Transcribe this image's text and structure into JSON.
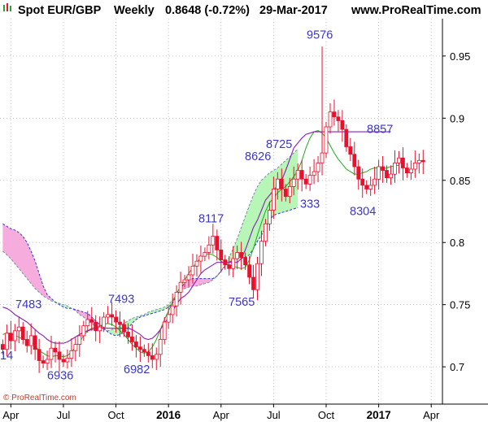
{
  "header": {
    "instrument": "Spot EUR/GBP",
    "timeframe": "Weekly",
    "quote": "0.8648 (-0.72%)",
    "date": "29-Mar-2017",
    "site": "www.ProRealTime.com"
  },
  "watermark": "© ProRealTime.com",
  "colors": {
    "up": "#ffffff",
    "down": "#e8112d",
    "wick": "#e8112d",
    "tenkan": "#1faa1f",
    "kijun": "#8a1eb8",
    "cloud_bull": "#b3f5b3",
    "cloud_bear": "#f7a8dc",
    "span_a": "#7a8aa6",
    "span_b": "#3434d0",
    "annotation": "#3b36c8",
    "grid": "#c8c8c8"
  },
  "chart_data": {
    "type": "candlestick",
    "title": "Spot EUR/GBP Weekly",
    "y_axis": {
      "min": 0.67,
      "max": 0.98,
      "ticks": [
        0.7,
        0.75,
        0.8,
        0.85,
        0.9,
        0.95
      ],
      "position": "right"
    },
    "x_axis": {
      "labels": [
        {
          "label": "Apr",
          "week": 2
        },
        {
          "label": "Jul",
          "week": 15
        },
        {
          "label": "Oct",
          "week": 28
        },
        {
          "label": "2016",
          "week": 41,
          "bold": true
        },
        {
          "label": "Apr",
          "week": 54
        },
        {
          "label": "Jul",
          "week": 67
        },
        {
          "label": "Oct",
          "week": 80
        },
        {
          "label": "2017",
          "week": 93,
          "bold": true
        },
        {
          "label": "Apr",
          "week": 106
        }
      ],
      "weeks_total": 111
    },
    "closes": [
      0.714,
      0.727,
      0.721,
      0.729,
      0.732,
      0.722,
      0.717,
      0.725,
      0.714,
      0.705,
      0.703,
      0.706,
      0.715,
      0.712,
      0.706,
      0.704,
      0.707,
      0.713,
      0.718,
      0.725,
      0.733,
      0.738,
      0.736,
      0.729,
      0.732,
      0.74,
      0.742,
      0.74,
      0.736,
      0.734,
      0.728,
      0.724,
      0.72,
      0.716,
      0.714,
      0.712,
      0.709,
      0.706,
      0.71,
      0.722,
      0.736,
      0.742,
      0.749,
      0.76,
      0.768,
      0.77,
      0.774,
      0.781,
      0.785,
      0.789,
      0.792,
      0.798,
      0.805,
      0.794,
      0.786,
      0.782,
      0.779,
      0.787,
      0.792,
      0.788,
      0.782,
      0.772,
      0.762,
      0.783,
      0.801,
      0.815,
      0.826,
      0.843,
      0.851,
      0.843,
      0.837,
      0.845,
      0.851,
      0.858,
      0.851,
      0.847,
      0.854,
      0.857,
      0.864,
      0.872,
      0.893,
      0.905,
      0.901,
      0.898,
      0.891,
      0.877,
      0.871,
      0.861,
      0.851,
      0.846,
      0.843,
      0.846,
      0.851,
      0.861,
      0.858,
      0.852,
      0.855,
      0.864,
      0.868,
      0.86,
      0.856,
      0.859,
      0.864,
      0.866,
      0.865
    ],
    "tenkan_sen": [
      0.726,
      0.727,
      0.727,
      0.725,
      0.724,
      0.722,
      0.722,
      0.721,
      0.717,
      0.713,
      0.711,
      0.709,
      0.708,
      0.709,
      0.709,
      0.708,
      0.709,
      0.712,
      0.716,
      0.72,
      0.725,
      0.729,
      0.731,
      0.732,
      0.733,
      0.734,
      0.735,
      0.734,
      0.732,
      0.729,
      0.726,
      0.722,
      0.718,
      0.715,
      0.712,
      0.711,
      0.712,
      0.716,
      0.722,
      0.73,
      0.738,
      0.745,
      0.752,
      0.759,
      0.765,
      0.77,
      0.775,
      0.78,
      0.784,
      0.788,
      0.79,
      0.791,
      0.79,
      0.788,
      0.785,
      0.783,
      0.782,
      0.781,
      0.78,
      0.779,
      0.78,
      0.786,
      0.795,
      0.806,
      0.816,
      0.825,
      0.832,
      0.836,
      0.84,
      0.843,
      0.845,
      0.849,
      0.853,
      0.858,
      0.866,
      0.876,
      0.884,
      0.889,
      0.89,
      0.888,
      0.884,
      0.878,
      0.872,
      0.867,
      0.863,
      0.859,
      0.857,
      0.855,
      0.855,
      0.856,
      0.857,
      0.859,
      0.86,
      0.86,
      0.859,
      0.86,
      0.861,
      0.862,
      0.862
    ],
    "kijun_sen": [
      0.748,
      0.747,
      0.745,
      0.742,
      0.74,
      0.738,
      0.736,
      0.733,
      0.73,
      0.727,
      0.725,
      0.722,
      0.72,
      0.719,
      0.719,
      0.719,
      0.72,
      0.722,
      0.724,
      0.726,
      0.728,
      0.729,
      0.73,
      0.731,
      0.731,
      0.731,
      0.731,
      0.731,
      0.731,
      0.731,
      0.731,
      0.731,
      0.73,
      0.728,
      0.726,
      0.723,
      0.722,
      0.723,
      0.726,
      0.73,
      0.735,
      0.74,
      0.745,
      0.75,
      0.755,
      0.757,
      0.76,
      0.765,
      0.77,
      0.775,
      0.778,
      0.78,
      0.782,
      0.784,
      0.784,
      0.784,
      0.784,
      0.784,
      0.784,
      0.787,
      0.794,
      0.803,
      0.812,
      0.818,
      0.826,
      0.834,
      0.838,
      0.842,
      0.846,
      0.85,
      0.858,
      0.867,
      0.876,
      0.88,
      0.884,
      0.887,
      0.888,
      0.889,
      0.889,
      0.889,
      0.889,
      0.889,
      0.889,
      0.889,
      0.889,
      0.889,
      0.889,
      0.889,
      0.889,
      0.889,
      0.889,
      0.889,
      0.889,
      0.889,
      0.889,
      0.889,
      0.889
    ],
    "senkou_span_a": [
      0.793,
      0.79,
      0.787,
      0.783,
      0.779,
      0.775,
      0.771,
      0.767,
      0.763,
      0.76,
      0.757,
      0.755,
      0.753,
      0.752,
      0.751,
      0.75,
      0.749,
      0.747,
      0.745,
      0.742,
      0.74,
      0.737,
      0.735,
      0.732,
      0.731,
      0.73,
      0.729,
      0.73,
      0.731,
      0.733,
      0.735,
      0.737,
      0.739,
      0.74,
      0.741,
      0.742,
      0.744,
      0.745,
      0.746,
      0.747,
      0.748,
      0.75,
      0.754,
      0.758,
      0.761,
      0.763,
      0.764,
      0.765,
      0.765,
      0.766,
      0.767,
      0.768,
      0.77,
      0.773,
      0.777,
      0.782,
      0.788,
      0.795,
      0.803,
      0.812,
      0.821,
      0.83,
      0.838,
      0.845,
      0.85,
      0.853,
      0.856,
      0.858,
      0.86,
      0.863,
      0.866,
      0.869,
      0.872,
      0.875
    ],
    "senkou_span_b": [
      0.815,
      0.813,
      0.811,
      0.81,
      0.808,
      0.805,
      0.8,
      0.793,
      0.785,
      0.775,
      0.765,
      0.758,
      0.755,
      0.752,
      0.75,
      0.748,
      0.747,
      0.747,
      0.746,
      0.745,
      0.744,
      0.743,
      0.74,
      0.737,
      0.734,
      0.731,
      0.728,
      0.726,
      0.725,
      0.726,
      0.728,
      0.731,
      0.735,
      0.738,
      0.74,
      0.741,
      0.742,
      0.743,
      0.744,
      0.745,
      0.746,
      0.748,
      0.751,
      0.757,
      0.762,
      0.768,
      0.77,
      0.771,
      0.771,
      0.771,
      0.771,
      0.771,
      0.771,
      0.773,
      0.777,
      0.781,
      0.784,
      0.786,
      0.787,
      0.787,
      0.788,
      0.79,
      0.795,
      0.801,
      0.806,
      0.812,
      0.818,
      0.822,
      0.823,
      0.824,
      0.825,
      0.826,
      0.827,
      0.828
    ],
    "annotations": [
      {
        "label": "7483",
        "value": 0.7483
      },
      {
        "label": "6936",
        "value": 0.6936
      },
      {
        "label": "7493",
        "value": 0.7493
      },
      {
        "label": "6982",
        "value": 0.6982
      },
      {
        "label": "8117",
        "value": 0.8117
      },
      {
        "label": "7565",
        "value": 0.7565
      },
      {
        "label": "8626",
        "value": 0.8626
      },
      {
        "label": "8725",
        "value": 0.8725
      },
      {
        "label": "9576",
        "value": 0.9576
      },
      {
        "label": "333",
        "value": 0.8333
      },
      {
        "label": "8857",
        "value": 0.8857
      },
      {
        "label": "8304",
        "value": 0.8304
      },
      {
        "label": "14",
        "value": 0.7114
      }
    ]
  }
}
